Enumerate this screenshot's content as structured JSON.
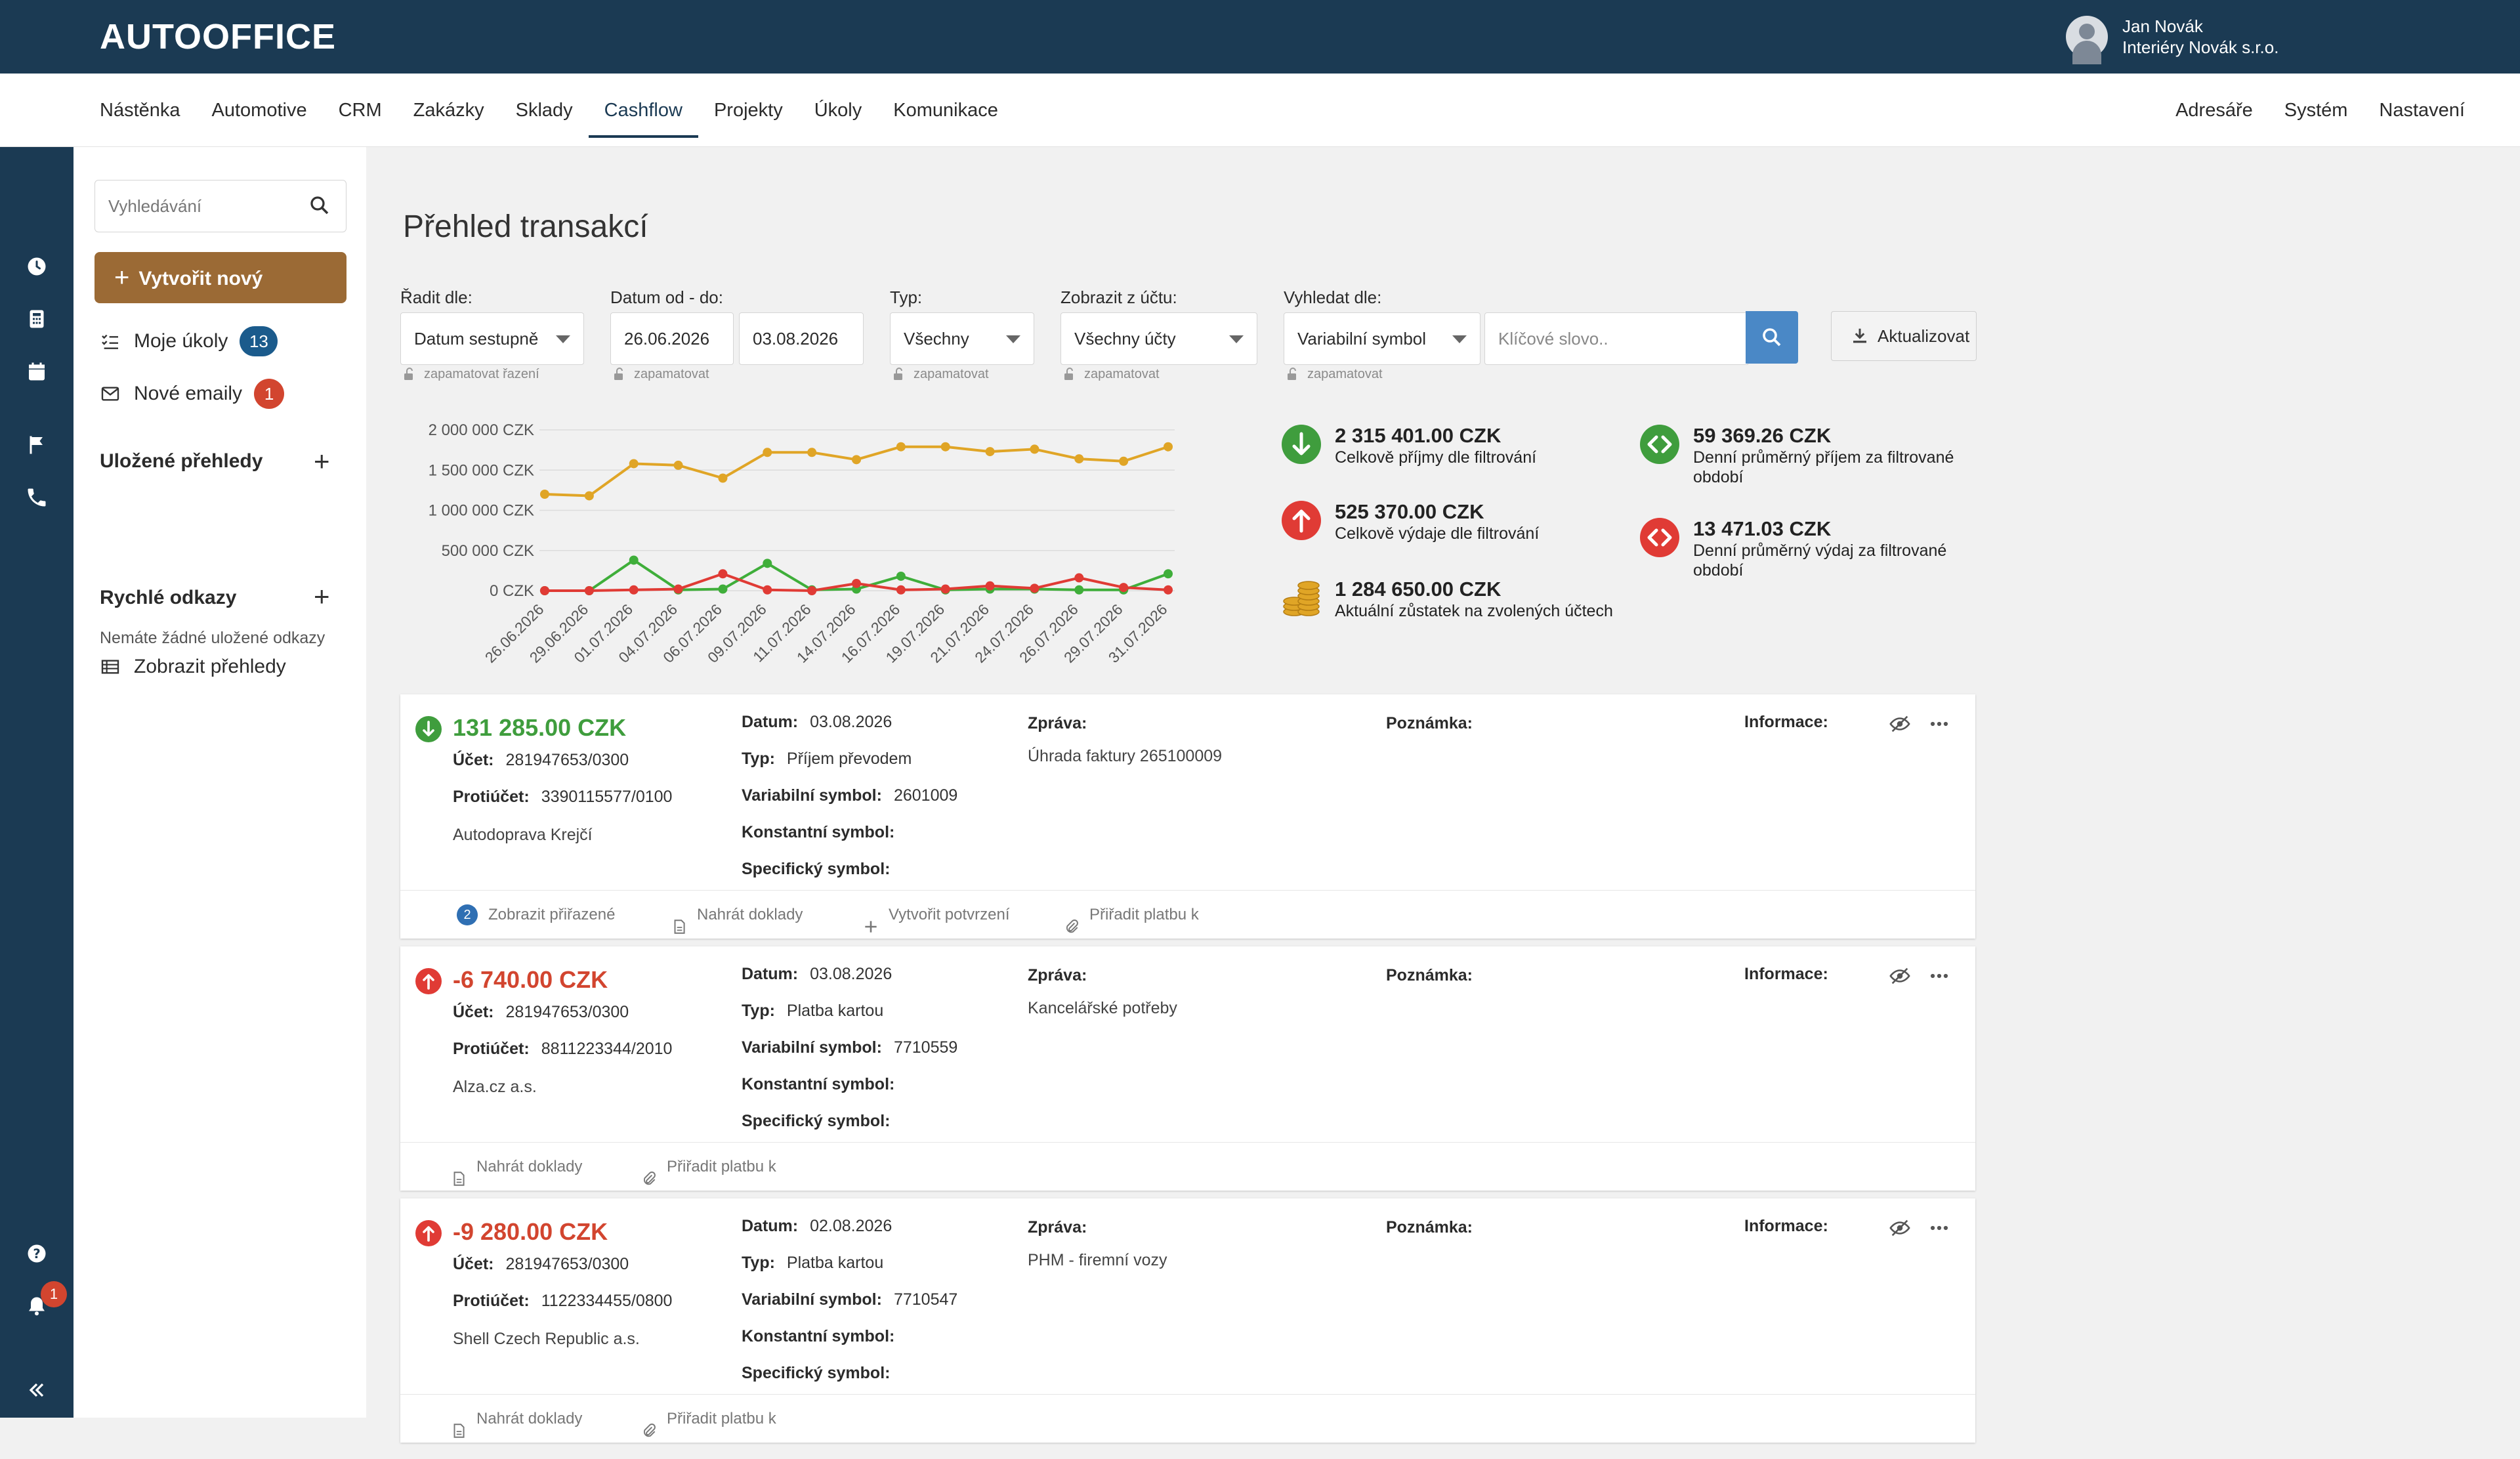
{
  "app": {
    "logo": "AUTOOFFICE"
  },
  "user": {
    "name": "Jan Novák",
    "company": "Interiéry Novák s.r.o."
  },
  "nav": {
    "left": [
      "Nástěnka",
      "Automotive",
      "CRM",
      "Zakázky",
      "Sklady",
      "Cashflow",
      "Projekty",
      "Úkoly",
      "Komunikace"
    ],
    "right": [
      "Adresáře",
      "Systém",
      "Nastavení"
    ],
    "active": "Cashflow"
  },
  "rail": {
    "notifications_count": "1"
  },
  "sidebar": {
    "search_placeholder": "Vyhledávání",
    "create_label": "Vytvořit nový",
    "my_tasks_label": "Moje úkoly",
    "my_tasks_count": "13",
    "new_emails_label": "Nové emaily",
    "new_emails_count": "1",
    "saved_views_heading": "Uložené přehledy",
    "show_views_label": "Zobrazit přehledy",
    "quick_links_heading": "Rychlé odkazy",
    "no_links_text": "Nemáte žádné uložené odkazy"
  },
  "page": {
    "title": "Přehled transakcí"
  },
  "filters": {
    "sort_label": "Řadit dle:",
    "sort_value": "Datum sestupně",
    "sort_remember": "zapamatovat řazení",
    "date_label": "Datum od - do:",
    "date_from": "26.06.2026",
    "date_to": "03.08.2026",
    "date_remember": "zapamatovat",
    "type_label": "Typ:",
    "type_value": "Všechny",
    "type_remember": "zapamatovat",
    "account_label": "Zobrazit z účtu:",
    "account_value": "Všechny účty",
    "account_remember": "zapamatovat",
    "search_label": "Vyhledat dle:",
    "search_field_value": "Variabilní symbol",
    "search_remember": "zapamatovat",
    "keyword_placeholder": "Klíčové slovo..",
    "update_label": "Aktualizovat"
  },
  "chart_data": {
    "type": "line",
    "x": [
      "26.06.2026",
      "29.06.2026",
      "01.07.2026",
      "04.07.2026",
      "06.07.2026",
      "09.07.2026",
      "11.07.2026",
      "14.07.2026",
      "16.07.2026",
      "19.07.2026",
      "21.07.2026",
      "24.07.2026",
      "26.07.2026",
      "29.07.2026",
      "31.07.2026"
    ],
    "y_ticks": [
      "2 000 000 CZK",
      "1 500 000 CZK",
      "1 000 000 CZK",
      "500 000 CZK",
      "0 CZK"
    ],
    "ylim": [
      0,
      2000000
    ],
    "series": [
      {
        "color": "#e0a526",
        "values": [
          1200000,
          1180000,
          1580000,
          1560000,
          1400000,
          1720000,
          1720000,
          1630000,
          1790000,
          1790000,
          1730000,
          1760000,
          1640000,
          1610000,
          1790000
        ]
      },
      {
        "color": "#3fae3a",
        "values": [
          0,
          0,
          380000,
          10000,
          20000,
          340000,
          10000,
          20000,
          180000,
          10000,
          20000,
          20000,
          10000,
          10000,
          210000
        ]
      },
      {
        "color": "#e03b35",
        "values": [
          0,
          0,
          10000,
          20000,
          210000,
          10000,
          0,
          90000,
          10000,
          20000,
          60000,
          30000,
          160000,
          40000,
          10000
        ]
      }
    ]
  },
  "stats": [
    {
      "value": "2 315 401.00 CZK",
      "desc": "Celkově příjmy dle filtrování",
      "icon": "arrow-down-green"
    },
    {
      "value": "525 370.00 CZK",
      "desc": "Celkově výdaje dle filtrování",
      "icon": "arrow-up-red"
    },
    {
      "value": "1 284 650.00 CZK",
      "desc": "Aktuální zůstatek na zvolených účtech",
      "icon": "coins"
    },
    {
      "value": "59 369.26 CZK",
      "desc": "Denní průměrný příjem za filtrované období",
      "icon": "code-green"
    },
    {
      "value": "13 471.03 CZK",
      "desc": "Denní průměrný výdaj za filtrované období",
      "icon": "code-red"
    }
  ],
  "labels": {
    "account": "Účet:",
    "counter_account": "Protiúčet:",
    "date": "Datum:",
    "type": "Typ:",
    "variable_symbol": "Variabilní symbol:",
    "constant_symbol": "Konstantní symbol:",
    "specific_symbol": "Specifický symbol:",
    "message": "Zpráva:",
    "note": "Poznámka:",
    "info": "Informace:",
    "show_assigned": "Zobrazit přiřazené",
    "upload_docs": "Nahrát doklady",
    "create_confirmation": "Vytvořit potvrzení",
    "assign_payment": "Přiřadit platbu k"
  },
  "transactions": [
    {
      "amount": "131 285.00 CZK",
      "direction": "in",
      "account": "281947653/0300",
      "counter_account": "3390115577/0100",
      "partner": "Autodoprava Krejčí",
      "date": "03.08.2026",
      "type": "Příjem převodem",
      "variable_symbol": "2601009",
      "message": "Úhrada faktury 265100009",
      "assigned_count": "2"
    },
    {
      "amount": "-6 740.00 CZK",
      "direction": "out",
      "account": "281947653/0300",
      "counter_account": "8811223344/2010",
      "partner": "Alza.cz a.s.",
      "date": "03.08.2026",
      "type": "Platba kartou",
      "variable_symbol": "7710559",
      "message": "Kancelářské potřeby"
    },
    {
      "amount": "-9 280.00 CZK",
      "direction": "out",
      "account": "281947653/0300",
      "counter_account": "1122334455/0800",
      "partner": "Shell Czech Republic a.s.",
      "date": "02.08.2026",
      "type": "Platba kartou",
      "variable_symbol": "7710547",
      "message": "PHM - firemní vozy"
    }
  ]
}
